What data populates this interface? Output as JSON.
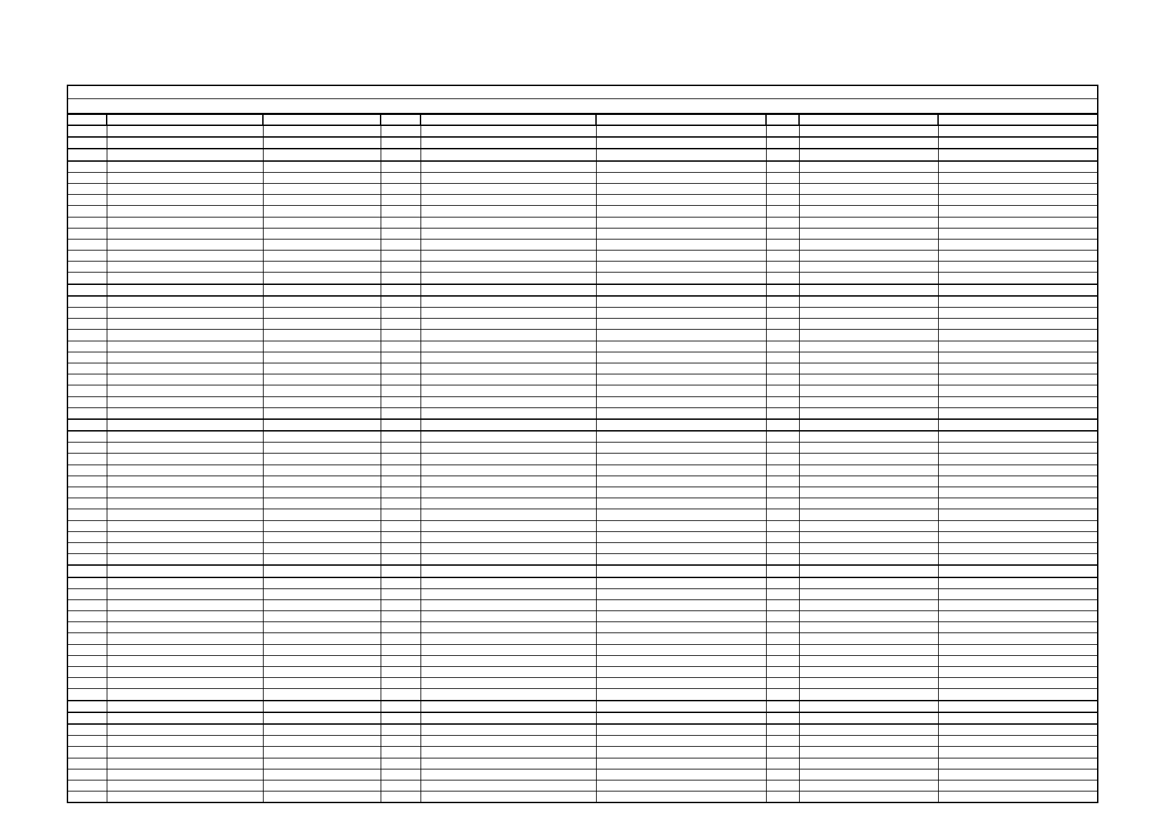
{
  "table": {
    "title": "",
    "subtitle": "",
    "headers": [
      "",
      "",
      "",
      "",
      "",
      "",
      "",
      "",
      ""
    ],
    "row_count": 60,
    "thick_row_separators_after": [
      1,
      2,
      3,
      14,
      15,
      26,
      27,
      39,
      40,
      51,
      52,
      53
    ]
  }
}
